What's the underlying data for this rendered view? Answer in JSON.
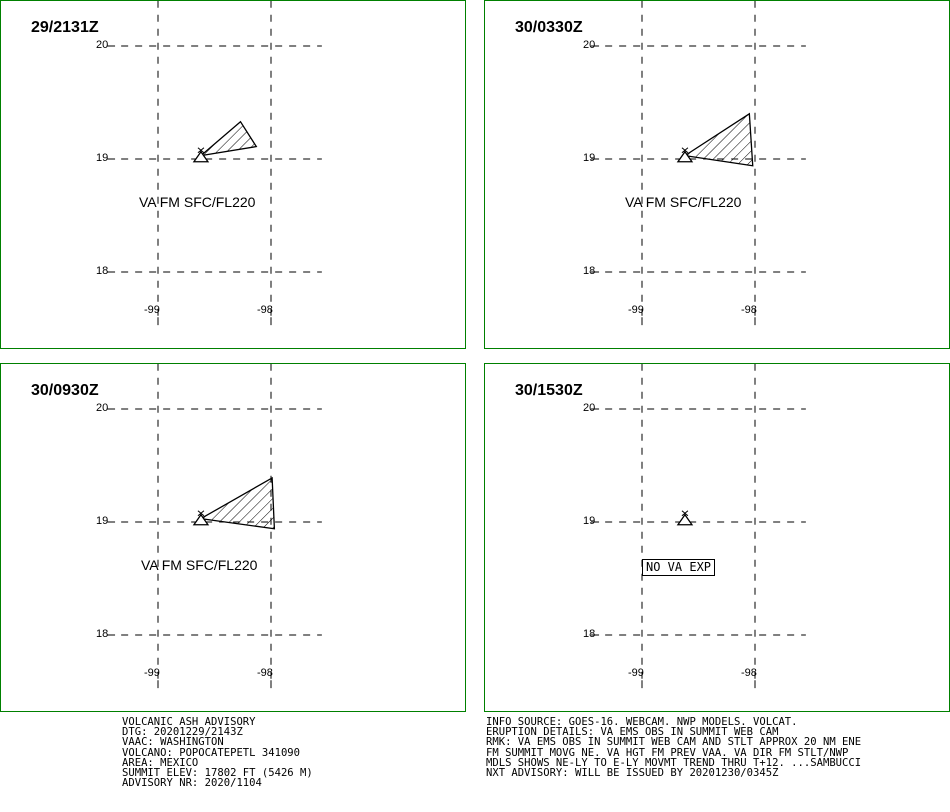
{
  "colors": {
    "frame": "#008000",
    "grid": "#000000",
    "ash_outline": "#000000",
    "background": "#ffffff"
  },
  "map": {
    "lat_ticks": [
      "20",
      "19",
      "18"
    ],
    "lon_ticks": [
      "-99",
      "-98"
    ],
    "volcano": {
      "lat": 19.02,
      "lon": -98.62,
      "icon": "volcano-icon"
    },
    "ash_icon": "hatched-ash-area"
  },
  "panels": [
    {
      "title": "29/2131Z",
      "has_ash": true,
      "ash_polygon": [
        [
          -98.62,
          19.03
        ],
        [
          -98.27,
          19.33
        ],
        [
          -98.13,
          19.11
        ]
      ],
      "label": "VA FM SFC/FL220",
      "boxed_label": ""
    },
    {
      "title": "30/0330Z",
      "has_ash": true,
      "ash_polygon": [
        [
          -98.62,
          19.03
        ],
        [
          -98.05,
          19.4
        ],
        [
          -98.02,
          18.94
        ]
      ],
      "label": "VA FM SFC/FL220",
      "boxed_label": ""
    },
    {
      "title": "30/0930Z",
      "has_ash": true,
      "ash_polygon": [
        [
          -98.62,
          19.03
        ],
        [
          -97.99,
          19.39
        ],
        [
          -97.97,
          18.94
        ]
      ],
      "label": "VA FM SFC/FL220",
      "boxed_label": ""
    },
    {
      "title": "30/1530Z",
      "has_ash": false,
      "ash_polygon": [],
      "label": "",
      "boxed_label": "NO VA EXP"
    }
  ],
  "advisory": {
    "left_lines": [
      "VOLCANIC ASH ADVISORY",
      "DTG: 20201229/2143Z",
      "VAAC: WASHINGTON",
      "VOLCANO: POPOCATEPETL 341090",
      "AREA: MEXICO",
      "SUMMIT ELEV: 17802 FT (5426 M)",
      "ADVISORY NR: 2020/1104"
    ],
    "right_lines": [
      "INFO SOURCE: GOES-16. WEBCAM. NWP MODELS. VOLCAT.",
      "ERUPTION DETAILS: VA EMS OBS IN SUMMIT WEB CAM",
      "RMK: VA EMS OBS IN SUMMIT WEB CAM AND STLT APPROX 20 NM ENE",
      "FM SUMMIT MOVG NE. VA HGT FM PREV VAA. VA DIR FM STLT/NWP",
      "MDLS SHOWS NE-LY TO E-LY MOVMT TREND THRU T+12. ...SAMBUCCI",
      "NXT ADVISORY: WILL BE ISSUED BY 20201230/0345Z"
    ]
  }
}
